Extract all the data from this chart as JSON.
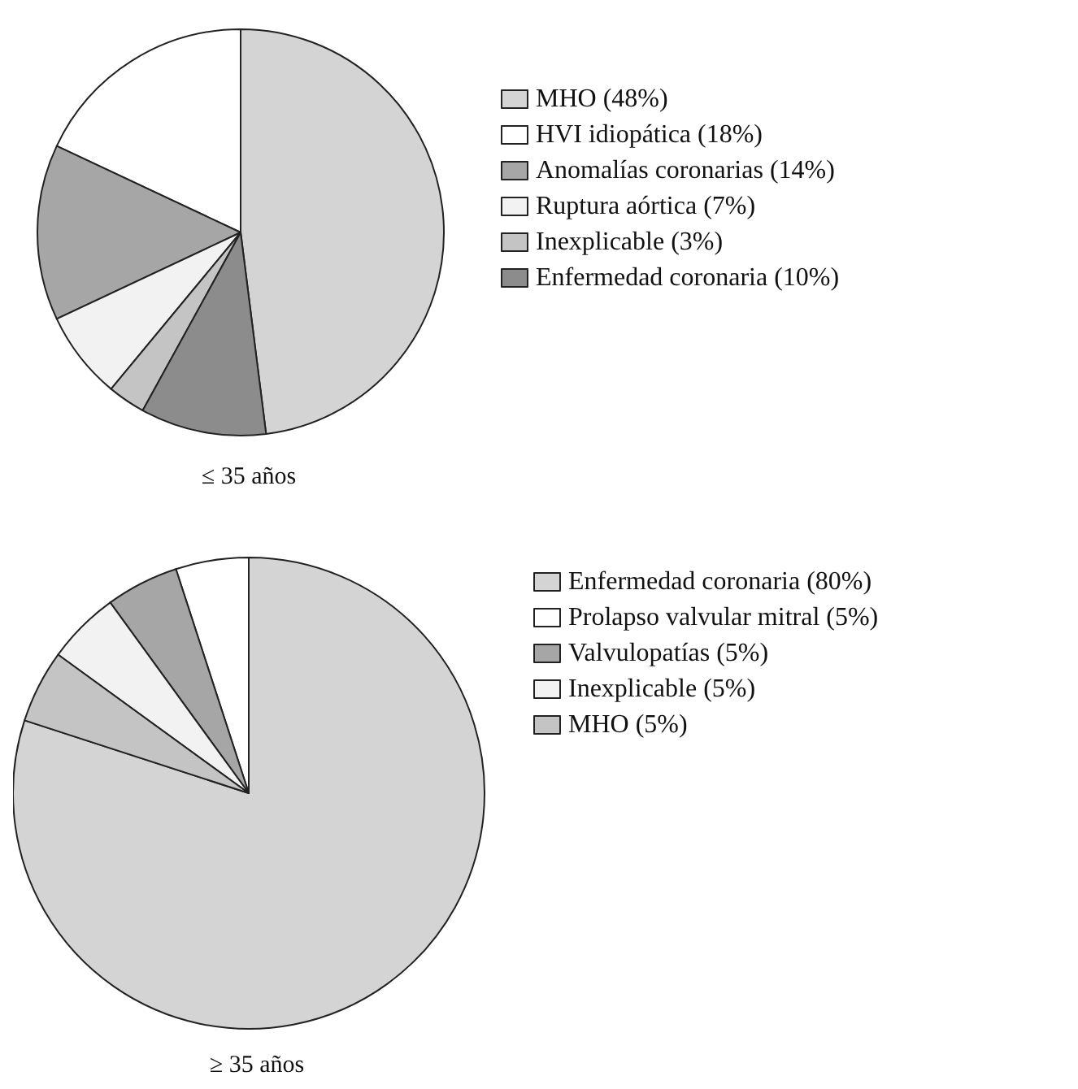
{
  "chart_data": [
    {
      "type": "pie",
      "title": "≤ 35 años",
      "categories": [
        "MHO (48%)",
        "HVI idiopática (18%)",
        "Anomalías coronarias (14%)",
        "Ruptura aórtica (7%)",
        "Inexplicable (3%)",
        "Enfermedad coronaria (10%)"
      ],
      "values": [
        48,
        18,
        14,
        7,
        3,
        10
      ],
      "colors": [
        "#d4d4d4",
        "#ffffff",
        "#a6a6a6",
        "#f2f2f2",
        "#c4c4c4",
        "#8c8c8c"
      ],
      "legend": "right"
    },
    {
      "type": "pie",
      "title": "≥ 35 años",
      "categories": [
        "Enfermedad coronaria (80%)",
        "Prolapso valvular mitral (5%)",
        "Valvulopatías (5%)",
        "Inexplicable (5%)",
        "MHO (5%)"
      ],
      "values": [
        80,
        5,
        5,
        5,
        5
      ],
      "colors": [
        "#d4d4d4",
        "#ffffff",
        "#a6a6a6",
        "#f2f2f2",
        "#c4c4c4"
      ],
      "legend": "right"
    }
  ]
}
